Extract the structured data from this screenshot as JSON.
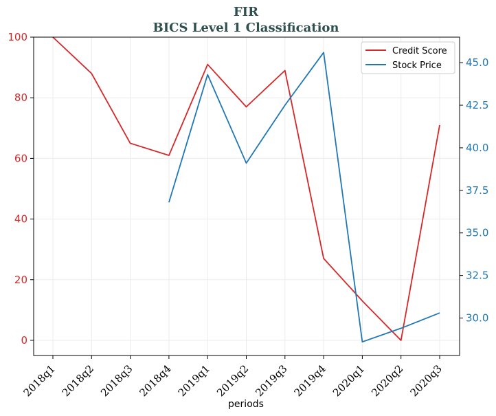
{
  "chart_data": {
    "type": "line",
    "title": "FIR",
    "subtitle": "BICS Level 1 Classification",
    "xlabel": "periods",
    "categories": [
      "2018q1",
      "2018q2",
      "2018q3",
      "2018q4",
      "2019q1",
      "2019q2",
      "2019q3",
      "2019q4",
      "2020q1",
      "2020q2",
      "2020q3"
    ],
    "series": [
      {
        "name": "Credit Score",
        "axis": "left",
        "color": "#d62728",
        "values": [
          100,
          88,
          65,
          61,
          91,
          77,
          89,
          27,
          13,
          0,
          71
        ]
      },
      {
        "name": "Stock Price",
        "axis": "right",
        "color": "#1f77b4",
        "values": [
          null,
          null,
          null,
          36.8,
          44.3,
          39.1,
          42.5,
          45.6,
          28.6,
          29.4,
          30.3
        ]
      }
    ],
    "left_axis": {
      "ylim": [
        -5,
        100
      ],
      "ticks": [
        0,
        20,
        40,
        60,
        80,
        100
      ],
      "color": "#d62728"
    },
    "right_axis": {
      "ylim": [
        27.8,
        46.5
      ],
      "ticks": [
        30.0,
        32.5,
        35.0,
        37.5,
        40.0,
        42.5,
        45.0
      ],
      "tick_labels": [
        "30.0",
        "32.5",
        "35.0",
        "37.5",
        "40.0",
        "42.5",
        "45.0"
      ],
      "color": "#1f77b4"
    },
    "grid": true,
    "legend_position": "top-right",
    "title_color": "#2f4f4f"
  }
}
